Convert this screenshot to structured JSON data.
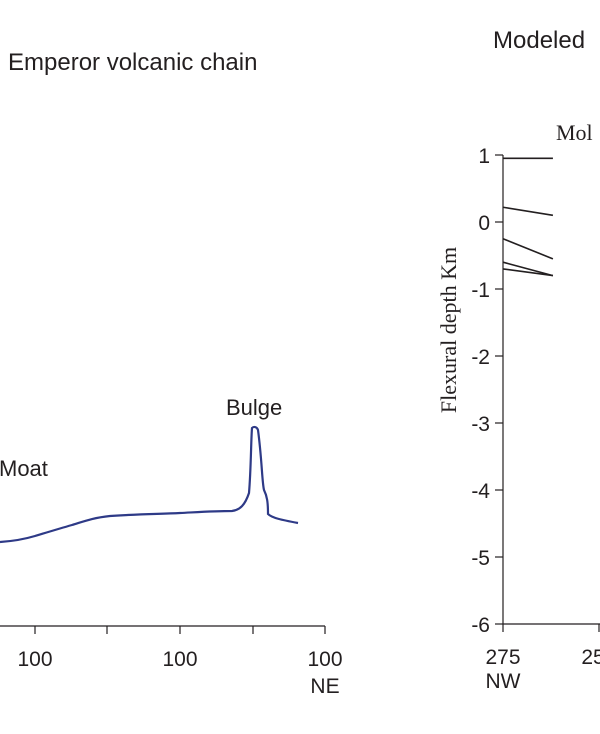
{
  "chart_data": [
    {
      "type": "line",
      "title": "Emperor volcanic chain",
      "x_tick_labels": [
        "100",
        "100",
        "100"
      ],
      "x_direction_label": "NE",
      "annotations": [
        "Bulge",
        "Moat"
      ],
      "series_color": "#2e3a87"
    },
    {
      "type": "line",
      "title": "Modeled",
      "ylabel": "Flexural depth Km",
      "ylim": [
        -6,
        1
      ],
      "y_ticks": [
        "1",
        "0",
        "-1",
        "-2",
        "-3",
        "-4",
        "-5",
        "-6"
      ],
      "x_tick_labels": [
        "275",
        "25"
      ],
      "x_direction_label": "NW",
      "annotations": [
        "Mol"
      ],
      "series_color": "#231f20",
      "series": [
        {
          "x": [
            275,
            262
          ],
          "values": [
            0.95,
            0.95
          ]
        },
        {
          "x": [
            275,
            262
          ],
          "values": [
            0.22,
            0.1
          ]
        },
        {
          "x": [
            275,
            262
          ],
          "values": [
            -0.25,
            -0.55
          ]
        },
        {
          "x": [
            275,
            262
          ],
          "values": [
            -0.6,
            -0.8
          ]
        },
        {
          "x": [
            275,
            262
          ],
          "values": [
            -0.7,
            -0.8
          ]
        }
      ]
    }
  ]
}
